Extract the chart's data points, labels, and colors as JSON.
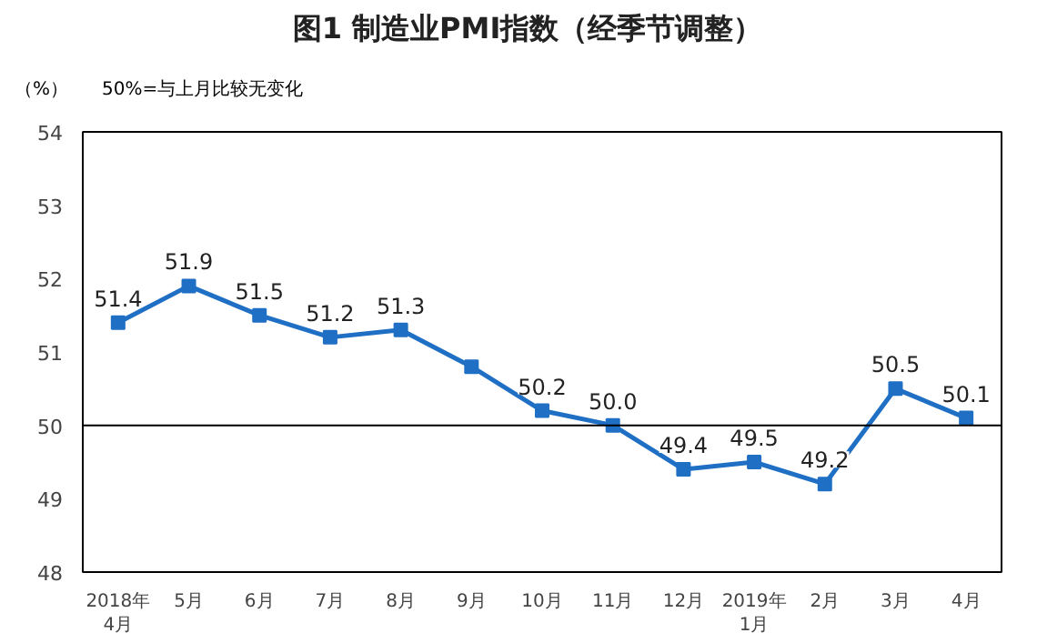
{
  "chart_data": {
    "type": "line",
    "title": "图1  制造业PMI指数（经季节调整）",
    "ylabel": "（%）",
    "annotations": [
      "50%=与上月比较无变化"
    ],
    "categories": [
      "2018年\n4月",
      "5月",
      "6月",
      "7月",
      "8月",
      "9月",
      "10月",
      "11月",
      "12月",
      "2019年\n1月",
      "2月",
      "3月",
      "4月"
    ],
    "series": [
      {
        "color": "#1f6fc5",
        "values": [
          51.4,
          51.9,
          51.5,
          51.2,
          51.3,
          50.8,
          50.2,
          50.0,
          49.4,
          49.5,
          49.2,
          50.5,
          50.1
        ],
        "value_labels": [
          "51.4",
          "51.9",
          "51.5",
          "51.2",
          "51.3",
          null,
          "50.2",
          "50.0",
          "49.4",
          "49.5",
          "49.2",
          "50.5",
          "50.1"
        ]
      }
    ],
    "ylim": [
      48,
      54
    ],
    "yticks": [
      48,
      49,
      50,
      51,
      52,
      53,
      54
    ],
    "grid": false,
    "marker": "square",
    "line_style": "solid",
    "ref_lines": [
      {
        "axis": "y",
        "value": 50,
        "label": null,
        "color": "#000000"
      }
    ]
  }
}
